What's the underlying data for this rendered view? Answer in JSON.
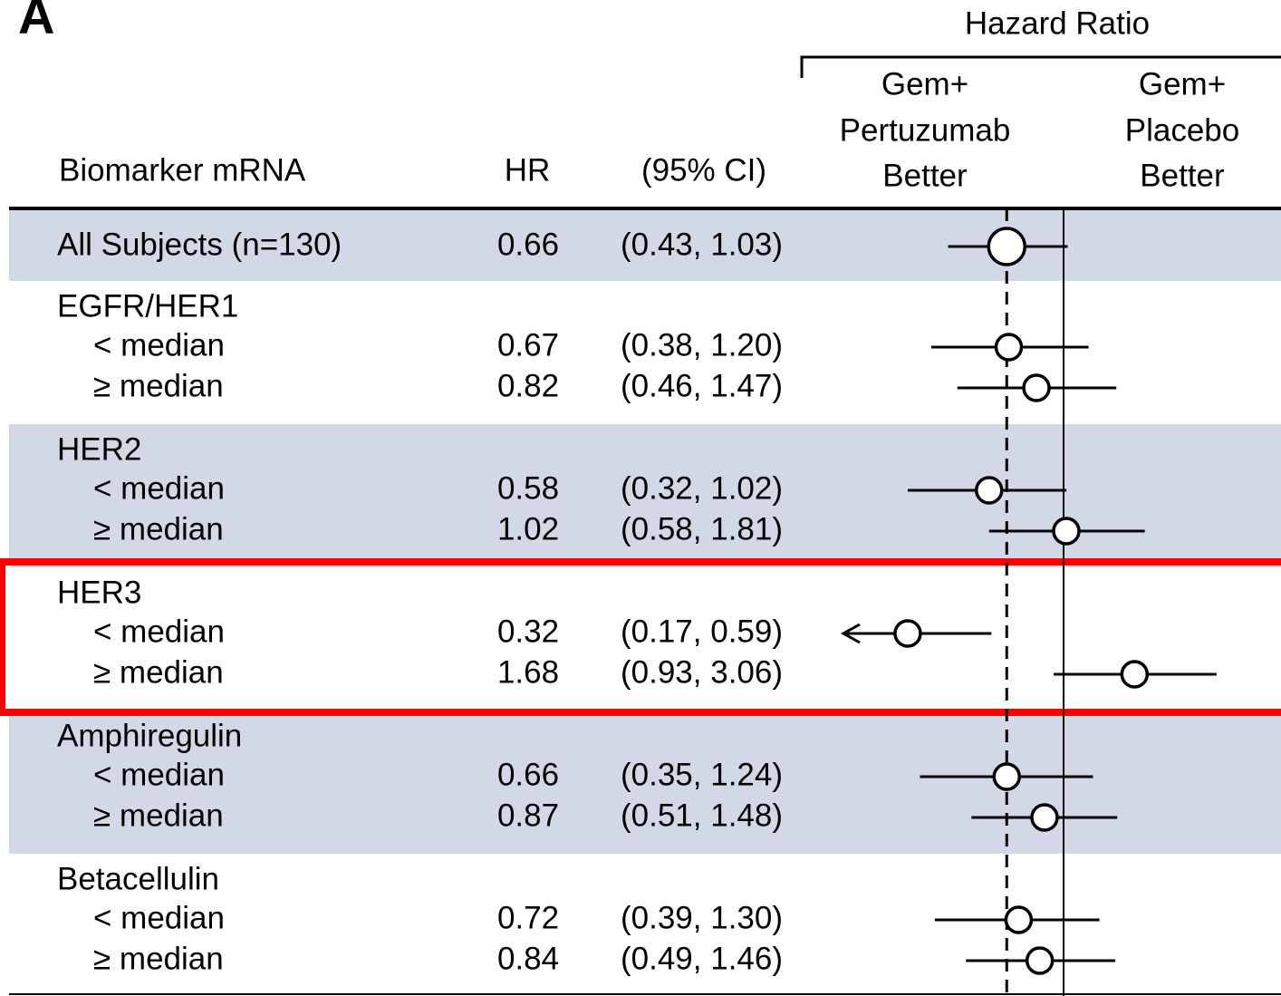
{
  "chart_data": {
    "type": "forest",
    "panel_label": "A",
    "axis_title": "Hazard Ratio",
    "left_header": [
      "Gem+",
      "Pertuzumab",
      "Better"
    ],
    "right_header": [
      "Gem+",
      "Placebo",
      "Better"
    ],
    "columns": [
      "Biomarker mRNA",
      "HR",
      "(95% CI)"
    ],
    "xlim": [
      0.2,
      5
    ],
    "log": true,
    "color": "#000000",
    "band_color": "#d3d8e6",
    "highlight_color": "#ff0000",
    "groups": [
      {
        "label": "All Subjects (n=130)",
        "shaded": true,
        "hr": 0.66,
        "ci_low": 0.43,
        "ci_high": 1.03,
        "ci_label": "(0.43, 1.03)"
      },
      {
        "label": "EGFR/HER1",
        "shaded": false,
        "rows": [
          {
            "label": "< median",
            "hr": 0.67,
            "ci_low": 0.38,
            "ci_high": 1.2,
            "ci_label": "(0.38, 1.20)"
          },
          {
            "label": "≥ median",
            "hr": 0.82,
            "ci_low": 0.46,
            "ci_high": 1.47,
            "ci_label": "(0.46, 1.47)"
          }
        ]
      },
      {
        "label": "HER2",
        "shaded": true,
        "rows": [
          {
            "label": "< median",
            "hr": 0.58,
            "ci_low": 0.32,
            "ci_high": 1.02,
            "ci_label": "(0.32, 1.02)"
          },
          {
            "label": "≥ median",
            "hr": 1.02,
            "ci_low": 0.58,
            "ci_high": 1.81,
            "ci_label": "(0.58, 1.81)"
          }
        ]
      },
      {
        "label": "HER3",
        "shaded": false,
        "highlight": true,
        "rows": [
          {
            "label": "< median",
            "hr": 0.32,
            "ci_low": 0.17,
            "ci_high": 0.59,
            "ci_label": "(0.17, 0.59)"
          },
          {
            "label": "≥ median",
            "hr": 1.68,
            "ci_low": 0.93,
            "ci_high": 3.06,
            "ci_label": "(0.93, 3.06)"
          }
        ]
      },
      {
        "label": "Amphiregulin",
        "shaded": true,
        "rows": [
          {
            "label": "< median",
            "hr": 0.66,
            "ci_low": 0.35,
            "ci_high": 1.24,
            "ci_label": "(0.35, 1.24)"
          },
          {
            "label": "≥ median",
            "hr": 0.87,
            "ci_low": 0.51,
            "ci_high": 1.48,
            "ci_label": "(0.51, 1.48)"
          }
        ]
      },
      {
        "label": "Betacellulin",
        "shaded": false,
        "rows": [
          {
            "label": "< median",
            "hr": 0.72,
            "ci_low": 0.39,
            "ci_high": 1.3,
            "ci_label": "(0.39, 1.30)"
          },
          {
            "label": "≥ median",
            "hr": 0.84,
            "ci_low": 0.49,
            "ci_high": 1.46,
            "ci_label": "(0.49, 1.46)"
          }
        ]
      }
    ]
  }
}
